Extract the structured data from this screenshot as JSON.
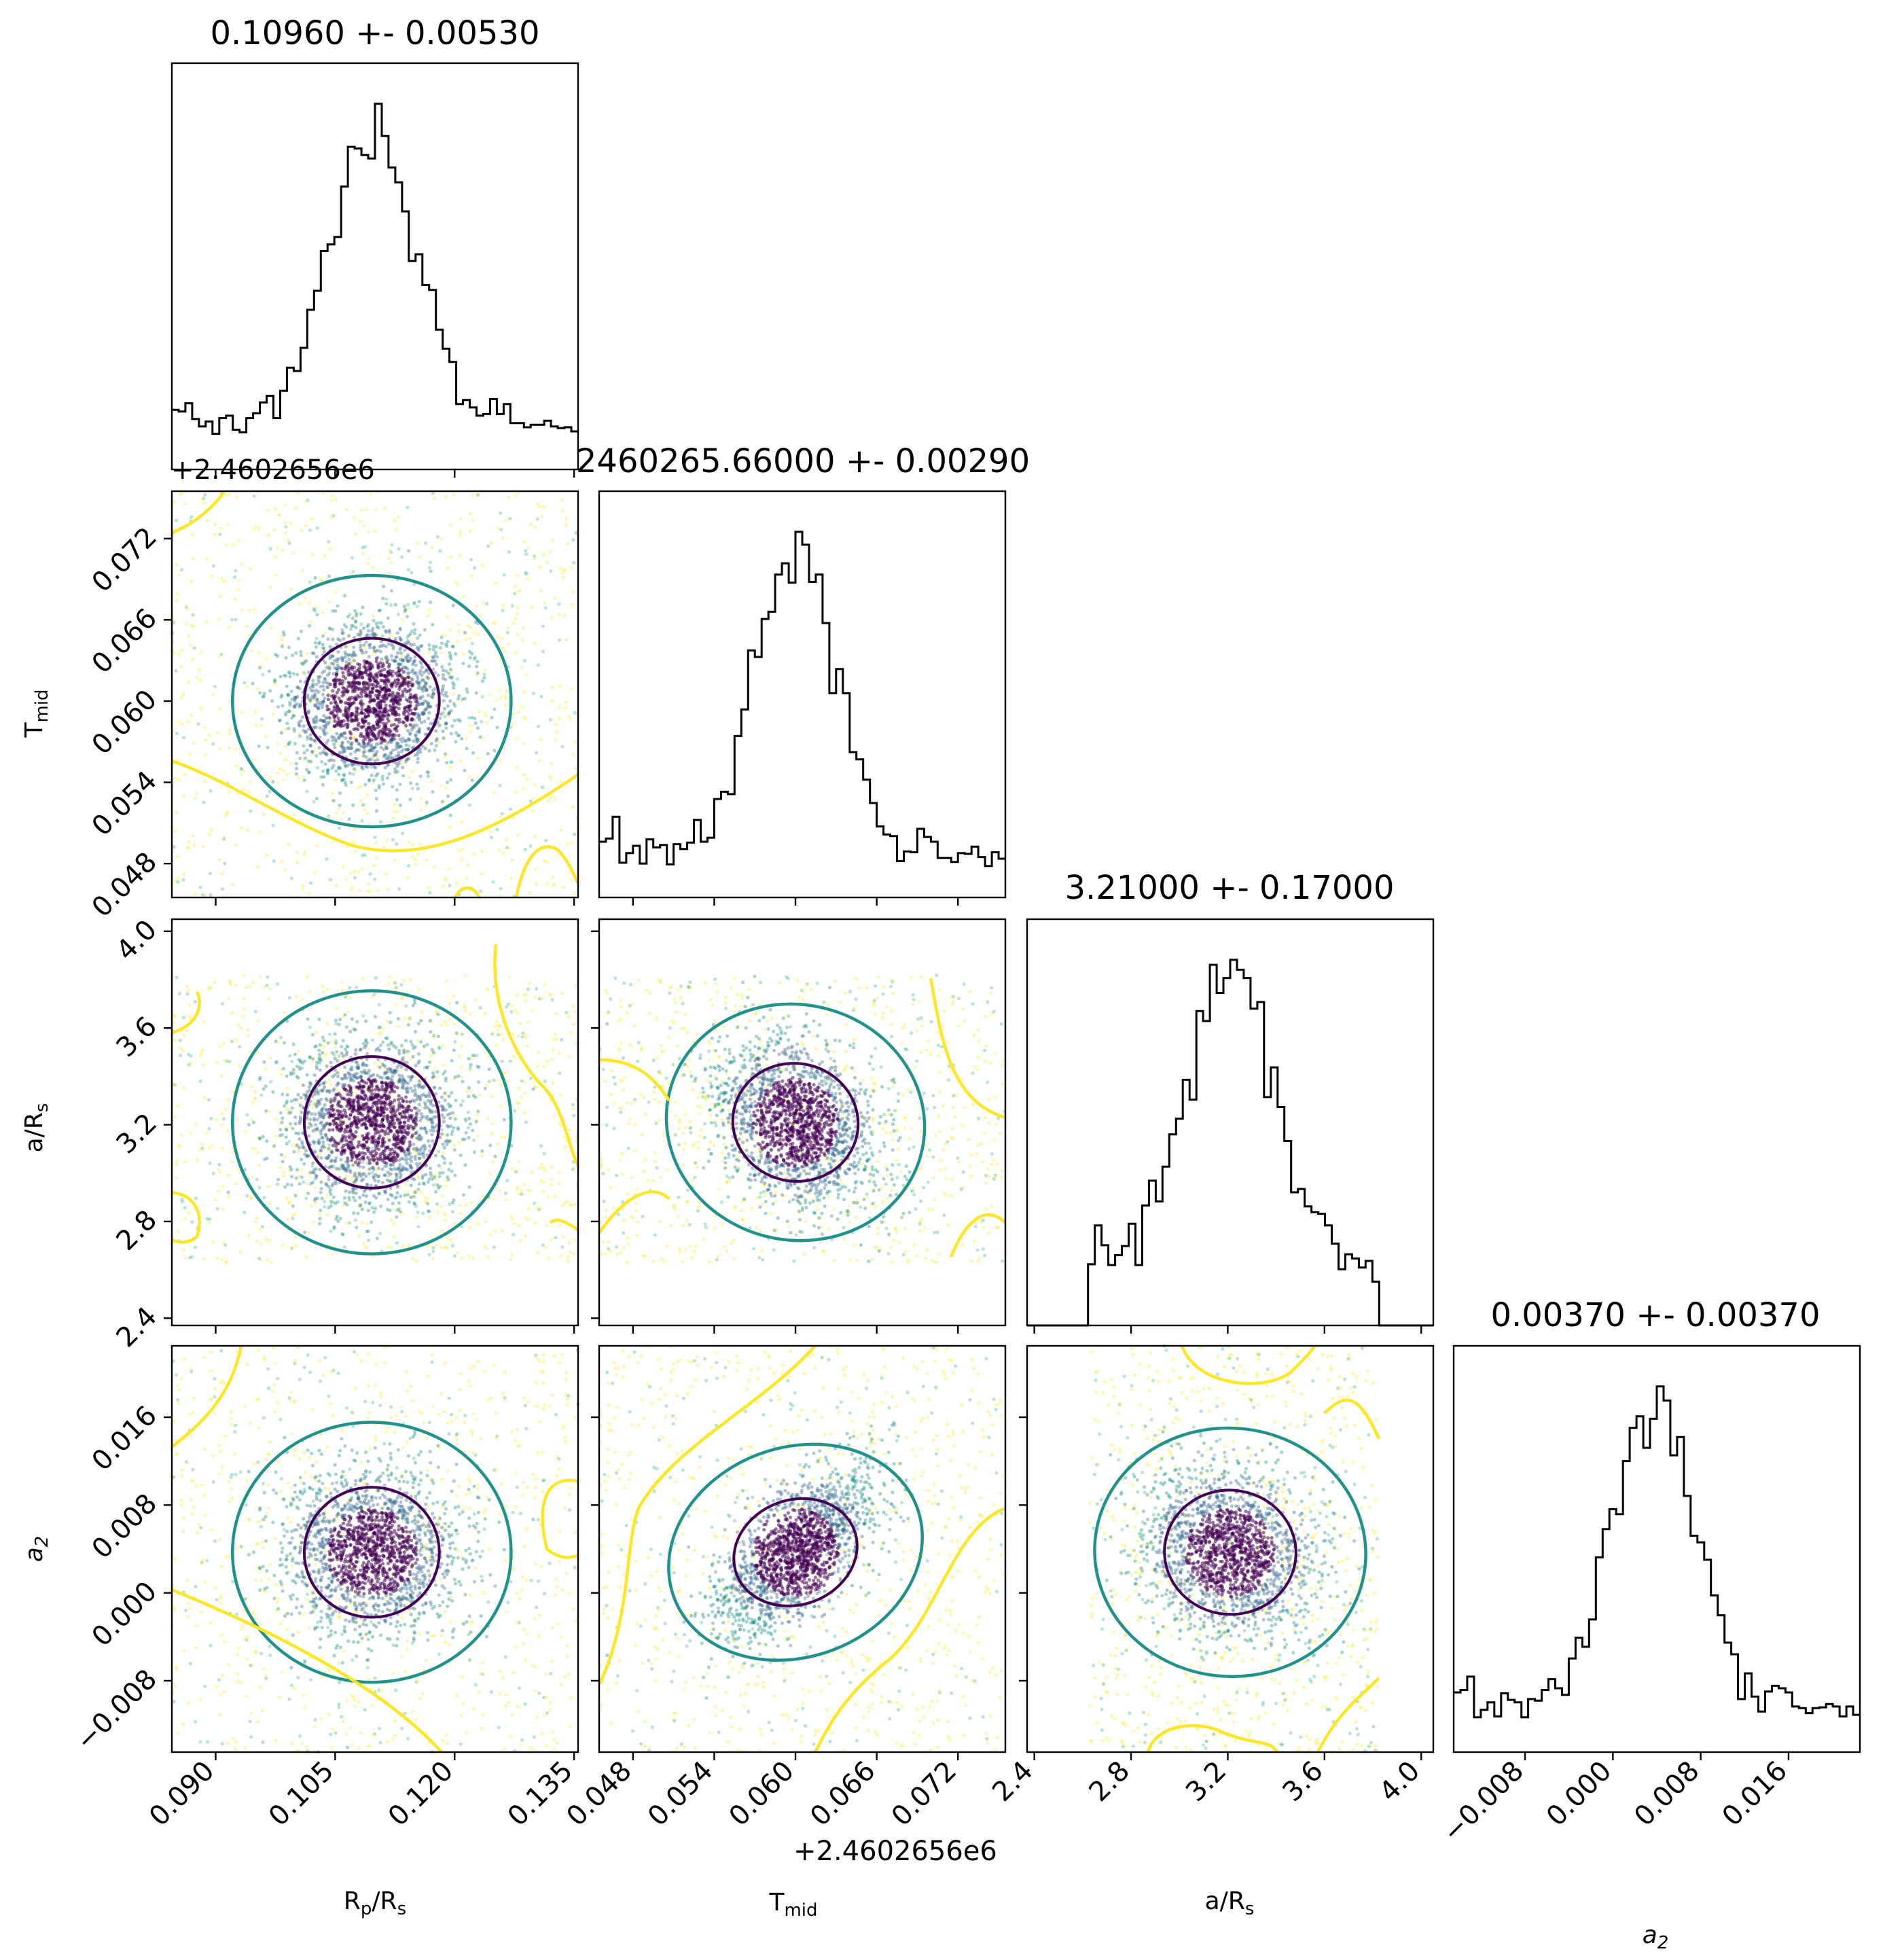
{
  "chart_data": {
    "type": "scatter",
    "kind": "corner plot (histograms on diagonal, scatter + density contours below)",
    "parameters": [
      {
        "label": "R",
        "label_sub": "p",
        "label_tail": "/R",
        "label_sub2": "s",
        "median": 0.1096,
        "sigma": 0.0053,
        "title": "0.10960 +- 0.00530",
        "range": [
          0.0845,
          0.1355
        ],
        "ticks": [
          "0.090",
          "0.105",
          "0.120",
          "0.135"
        ],
        "tick_values": [
          0.09,
          0.105,
          0.12,
          0.135
        ],
        "offset_text": ""
      },
      {
        "label": "T",
        "label_sub": "mid",
        "label_tail": "",
        "label_sub2": "",
        "median": 0.06,
        "sigma": 0.0029,
        "title": "2460265.66000 +- 0.00290",
        "range": [
          0.0455,
          0.0755
        ],
        "ticks": [
          "0.048",
          "0.054",
          "0.060",
          "0.066",
          "0.072"
        ],
        "tick_values": [
          0.048,
          0.054,
          0.06,
          0.066,
          0.072
        ],
        "offset_text": "+2.4602656e6"
      },
      {
        "label": "a/R",
        "label_sub": "s",
        "label_tail": "",
        "label_sub2": "",
        "median": 3.21,
        "sigma": 0.17,
        "title": "3.21000 +- 0.17000",
        "range": [
          2.37,
          4.05
        ],
        "ticks": [
          "2.4",
          "2.8",
          "3.2",
          "3.6",
          "4.0"
        ],
        "tick_values": [
          2.4,
          2.8,
          3.2,
          3.6,
          4.0
        ],
        "offset_text": ""
      },
      {
        "label": "a",
        "label_sub": "2",
        "label_tail": "",
        "label_sub2": "",
        "median": 0.0037,
        "sigma": 0.0037,
        "title": "0.00370 +- 0.00370",
        "range": [
          -0.0145,
          0.0225
        ],
        "ticks": [
          "−0.008",
          "0.000",
          "0.008",
          "0.016"
        ],
        "tick_values": [
          -0.008,
          0.0,
          0.008,
          0.016
        ],
        "offset_text": ""
      }
    ],
    "sample_bounds": [
      [
        0.0845,
        0.1355
      ],
      [
        0.0455,
        0.0755
      ],
      [
        2.63,
        3.82
      ],
      [
        -0.0145,
        0.0225
      ]
    ],
    "correlations": [
      [
        0,
        0,
        0,
        0
      ],
      [
        0,
        0,
        -0.35,
        0.65
      ],
      [
        0,
        -0.35,
        0,
        -0.15
      ],
      [
        0,
        0.65,
        -0.15,
        0
      ]
    ],
    "colormap": "viridis",
    "colors": {
      "inner": "#440154",
      "mid": "#31688e",
      "ring": "#21918c",
      "outer": "#35b779",
      "edge": "#fde725",
      "axes": "#000000"
    }
  }
}
